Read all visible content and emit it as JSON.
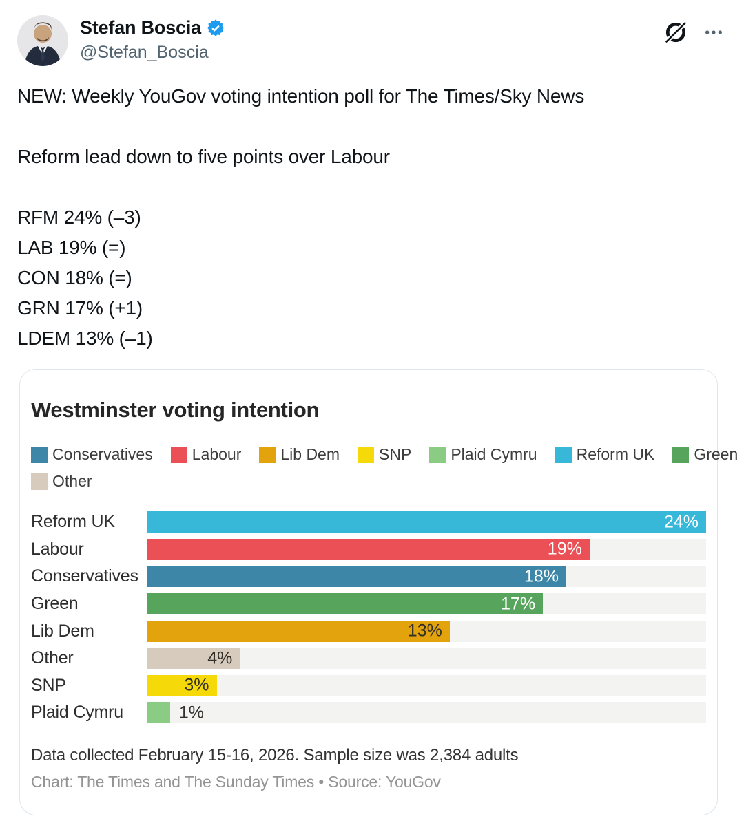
{
  "author": {
    "name": "Stefan Boscia",
    "handle": "@Stefan_Boscia",
    "verified_color": "#1d9bf0"
  },
  "header_icons": {
    "grok": "grok-logo",
    "more": "more-menu"
  },
  "tweet": {
    "line1": "NEW: Weekly YouGov voting intention poll for The Times/Sky News",
    "line2": "Reform lead down to five points over Labour",
    "poll_lines": [
      "RFM 24% (–3)",
      "LAB 19% (=)",
      "CON 18% (=)",
      "GRN 17% (+1)",
      "LDEM 13% (–1)"
    ]
  },
  "chart_data": {
    "type": "bar",
    "orientation": "horizontal",
    "title": "Westminster voting intention",
    "xlabel": "",
    "ylabel": "",
    "xlim": [
      0,
      24
    ],
    "xmax": 24,
    "grid": false,
    "legend_position": "top",
    "track_color": "#f3f3f1",
    "legend": [
      {
        "label": "Conservatives",
        "color": "#3d86a8"
      },
      {
        "label": "Labour",
        "color": "#ea5055"
      },
      {
        "label": "Lib Dem",
        "color": "#e2a30c"
      },
      {
        "label": "SNP",
        "color": "#f6d908"
      },
      {
        "label": "Plaid Cymru",
        "color": "#8bcc85"
      },
      {
        "label": "Reform UK",
        "color": "#38b8d8"
      },
      {
        "label": "Green",
        "color": "#57a45c"
      },
      {
        "label": "Other",
        "color": "#d6cbbc"
      }
    ],
    "rows": [
      {
        "label": "Reform UK",
        "value": 24,
        "value_label": "24%",
        "color": "#38b8d8",
        "text_color": "#ffffff",
        "inside": true
      },
      {
        "label": "Labour",
        "value": 19,
        "value_label": "19%",
        "color": "#ea5055",
        "text_color": "#ffffff",
        "inside": true
      },
      {
        "label": "Conservatives",
        "value": 18,
        "value_label": "18%",
        "color": "#3d86a8",
        "text_color": "#ffffff",
        "inside": true
      },
      {
        "label": "Green",
        "value": 17,
        "value_label": "17%",
        "color": "#57a45c",
        "text_color": "#ffffff",
        "inside": true
      },
      {
        "label": "Lib Dem",
        "value": 13,
        "value_label": "13%",
        "color": "#e2a30c",
        "text_color": "#33302a",
        "inside": true
      },
      {
        "label": "Other",
        "value": 4,
        "value_label": "4%",
        "color": "#d6cbbc",
        "text_color": "#33302a",
        "inside": true
      },
      {
        "label": "SNP",
        "value": 3,
        "value_label": "3%",
        "color": "#f6d908",
        "text_color": "#33302a",
        "inside": true
      },
      {
        "label": "Plaid Cymru",
        "value": 1,
        "value_label": "1%",
        "color": "#8bcc85",
        "text_color": "#33302a",
        "inside": false
      }
    ],
    "note": "Data collected February 15-16, 2026. Sample size was 2,384 adults",
    "credit": "Chart: The Times and The Sunday Times • Source: YouGov"
  }
}
